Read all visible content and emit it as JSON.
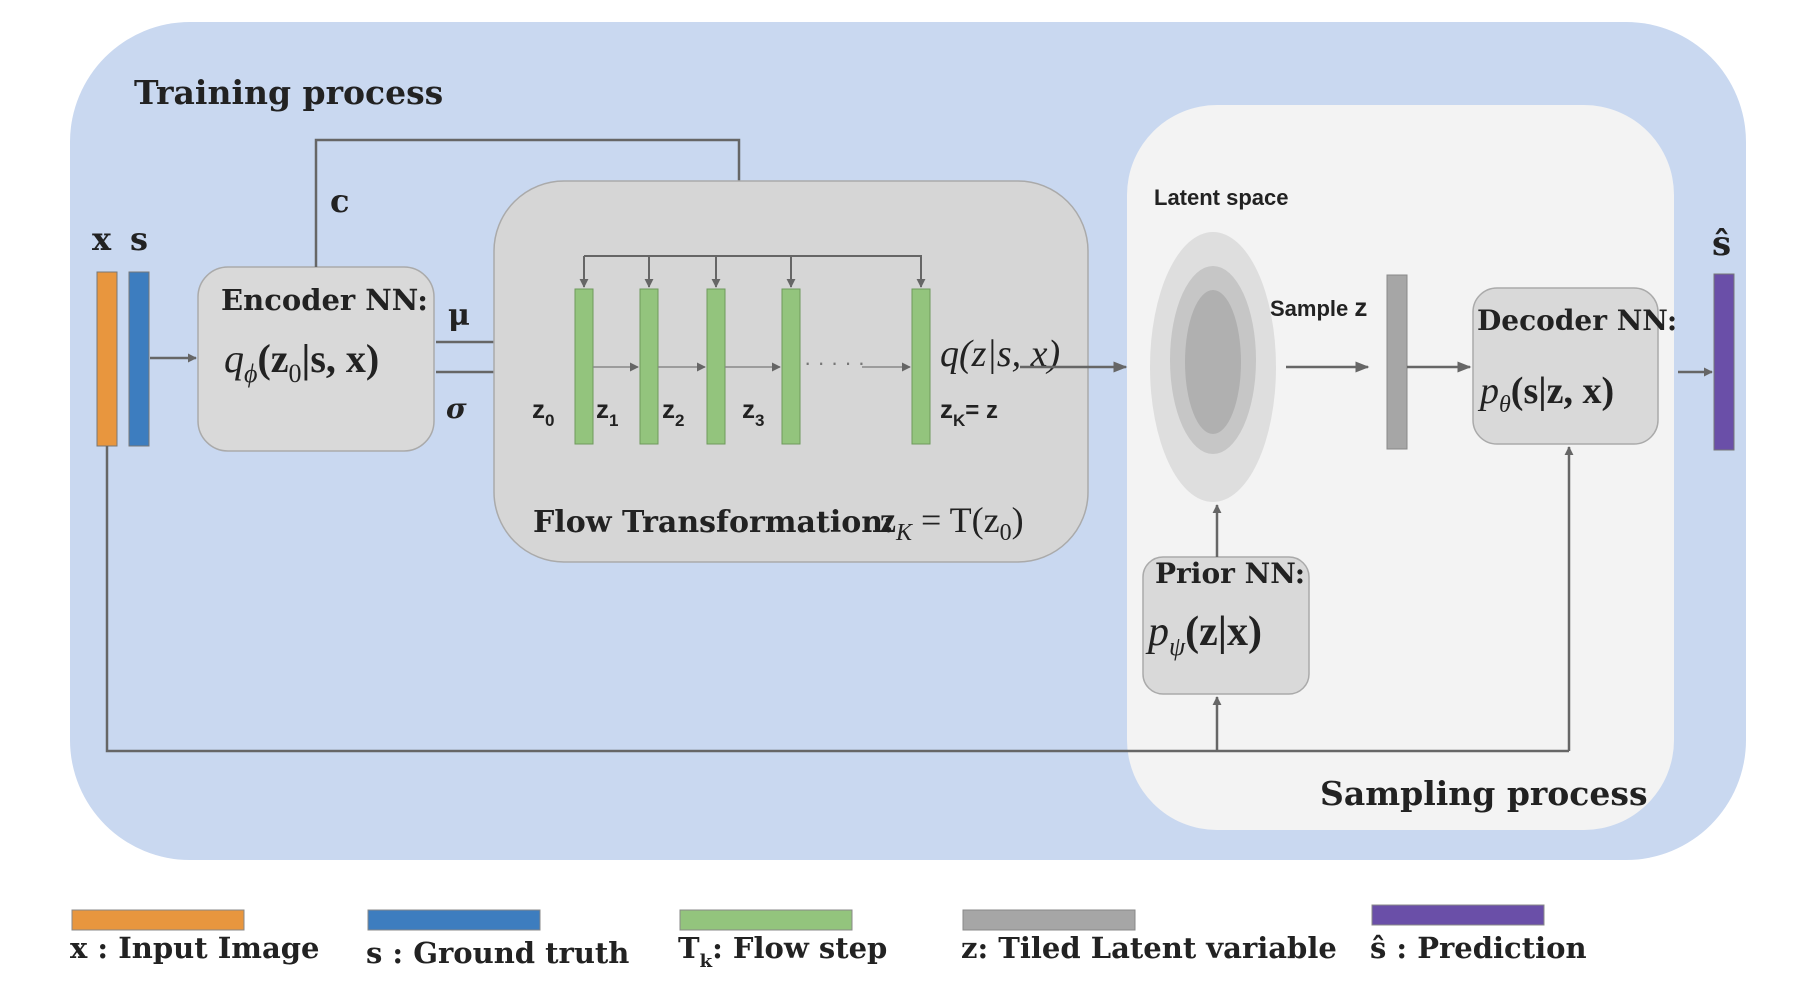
{
  "regions": {
    "training_title": "Training process",
    "sampling_title": "Sampling process",
    "latent_space_label": "Latent space"
  },
  "inputs": {
    "x_label": "x",
    "s_label": "s"
  },
  "encoder": {
    "title": "Encoder NN:",
    "formula_fn": "q",
    "formula_sub": "ϕ",
    "formula_args_a": "(z",
    "formula_args_sub": "0",
    "formula_args_b": "|s, x)",
    "condition_label": "c",
    "mu_label": "μ",
    "sigma_label": "σ"
  },
  "flow": {
    "title": "Flow Transformation:",
    "formula_a": "z",
    "formula_sub": "K",
    "formula_b": " = T(z",
    "formula_sub2": "0",
    "formula_c": ")",
    "output_formula": "q(z|s, x)",
    "steps": [
      {
        "label": "z",
        "sub": "0"
      },
      {
        "label": "z",
        "sub": "1"
      },
      {
        "label": "z",
        "sub": "2"
      },
      {
        "label": "z",
        "sub": "3"
      },
      {
        "label": "z",
        "sub": "K",
        "suffix": "= z"
      }
    ],
    "ellipsis": "· · · · ·"
  },
  "sampling": {
    "sample_label_a": "Sample ",
    "sample_label_b": "z"
  },
  "prior": {
    "title": "Prior NN:",
    "formula_fn": "p",
    "formula_sub": "ψ",
    "formula_args": "(z|x)"
  },
  "decoder": {
    "title": "Decoder NN:",
    "formula_fn": "p",
    "formula_sub": "θ",
    "formula_args": "(s|z, x)"
  },
  "output": {
    "label": "ŝ"
  },
  "legend": [
    {
      "symbol": "x",
      "text": " : Input Image",
      "color": "#e8963e"
    },
    {
      "symbol": "s",
      "text": " : Ground truth",
      "color": "#3d7dbf"
    },
    {
      "symbol": "T",
      "sub": "k",
      "text": ": Flow step",
      "color": "#93c47d"
    },
    {
      "symbol": "z",
      "text": ": Tiled Latent variable",
      "color": "#a6a6a6"
    },
    {
      "symbol": "ŝ",
      "text": " : Prediction",
      "color": "#6a4fa8"
    }
  ],
  "colors": {
    "training_bg": "#c9d8f0",
    "sampling_bg": "#f3f3f3",
    "box_bg": "#d9d9d9",
    "flow_bg": "#d6d6d6",
    "arrow": "#666666",
    "input_x": "#e8963e",
    "input_s": "#3d7dbf",
    "flow_step": "#93c47d",
    "latent": "#a6a6a6",
    "prediction": "#6a4fa8"
  }
}
